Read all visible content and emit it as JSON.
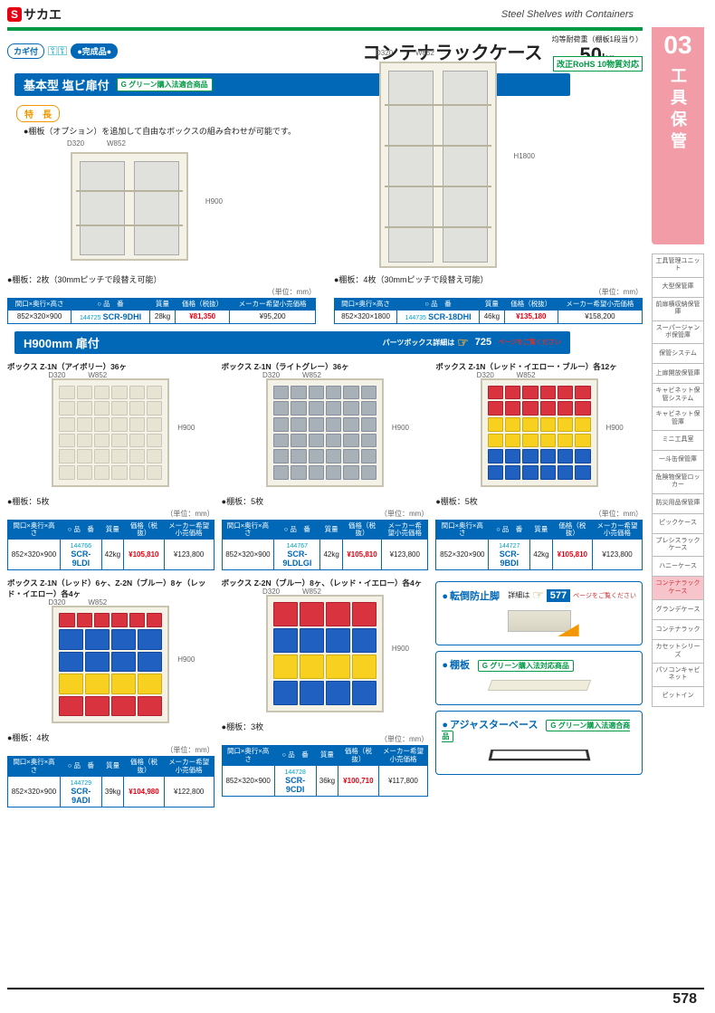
{
  "brand": {
    "logo_s": "S",
    "logo_jp": "サカエ",
    "steel_label": "Steel Shelves with Containers"
  },
  "side": {
    "num": "03",
    "title": "工具保管",
    "items": [
      "工具管理ユニット",
      "大型保管庫",
      "前扉横収納保管庫",
      "スーパージャンボ保管庫",
      "保管システム",
      "上扉開放保管庫",
      "キャビネット保管システム",
      "キャビネット保管庫",
      "ミニ工具室",
      "一斗缶保管庫",
      "危険物保管ロッカー",
      "防災用品保管庫",
      "ピックケース",
      "プレシスラックケース",
      "ハニーケース",
      "コンテナラックケース",
      "グランデケース",
      "コンテナラック",
      "カセットシリーズ",
      "パソコンキャビネット",
      "ピットイン"
    ],
    "active_index": 15
  },
  "header": {
    "pill1": "カギ付",
    "pill2": "●完成品●",
    "main_title": "コンテナラックケース",
    "load_label": "均等耐荷重（棚板1段当り）",
    "load_value": "50",
    "load_unit": "kg",
    "rohs": "改正RoHS 10物質対応"
  },
  "sect1": {
    "title": "基本型 塩ビ扉付",
    "g_label": "G グリーン購入法適合商品"
  },
  "feature": {
    "tag": "特　長",
    "text": "●棚板（オプション）を追加して自由なボックスの組み合わせが可能です。"
  },
  "dims": {
    "w852": "W852",
    "d320": "D320",
    "h900": "H900",
    "h1800": "H1800"
  },
  "tbl_headers": {
    "size": "間口×奥行×高さ",
    "code": "○ 品　番",
    "mass": "質量",
    "price": "価格（税抜）",
    "mprice": "メーカー希望小売価格"
  },
  "unit_label": "（単位：mm）",
  "shelves2": "●棚板：2枚（30mmピッチで段替え可能）",
  "shelves4": "●棚板：4枚（30mmピッチで段替え可能）",
  "shelves5": "●棚板：5枚",
  "shelves4b": "●棚板：4枚",
  "shelves3": "●棚板：3枚",
  "p1": {
    "size": "852×320×900",
    "codenum": "144725",
    "sku": "SCR-9DHI",
    "mass": "28kg",
    "price": "¥81,350",
    "mprice": "¥95,200"
  },
  "p2": {
    "size": "852×320×1800",
    "codenum": "144735",
    "sku": "SCR-18DHI",
    "mass": "46kg",
    "price": "¥135,180",
    "mprice": "¥158,200"
  },
  "sect2": {
    "title": "H900mm 扉付"
  },
  "ref725": {
    "label": "パーツボックス詳細は",
    "num": "725",
    "note": "ページをご覧ください"
  },
  "p3": {
    "box": "ボックス Z-1N（アイボリー）36ヶ",
    "size": "852×320×900",
    "codenum": "144766",
    "sku": "SCR-9LDI",
    "mass": "42kg",
    "price": "¥105,810",
    "mprice": "¥123,800"
  },
  "p4": {
    "box": "ボックス Z-1N（ライトグレー）36ヶ",
    "size": "852×320×900",
    "codenum": "144767",
    "sku": "SCR-9LDLGI",
    "mass": "42kg",
    "price": "¥105,810",
    "mprice": "¥123,800"
  },
  "p5": {
    "box": "ボックス Z-1N（レッド・イエロー・ブルー）各12ヶ",
    "size": "852×320×900",
    "codenum": "144727",
    "sku": "SCR-9BDI",
    "mass": "42kg",
    "price": "¥105,810",
    "mprice": "¥123,800"
  },
  "p6": {
    "box": "ボックス Z-1N（レッド）6ヶ、Z-2N（ブルー）8ヶ（レッド・イエロー）各4ヶ",
    "size": "852×320×900",
    "codenum": "144729",
    "sku": "SCR-9ADI",
    "mass": "39kg",
    "price": "¥104,980",
    "mprice": "¥122,800"
  },
  "p7": {
    "box": "ボックス Z-2N（ブルー）8ヶ、（レッド・イエロー）各4ヶ",
    "size": "852×320×900",
    "codenum": "144728",
    "sku": "SCR-9CDI",
    "mass": "36kg",
    "price": "¥100,710",
    "mprice": "¥117,800"
  },
  "callouts": {
    "c1": {
      "title": "転倒防止脚",
      "ref_num": "577",
      "ref_label": "詳細は",
      "ref_note": "ページをご覧ください"
    },
    "c2": {
      "title": "棚板",
      "badge": "G グリーン購入法対応商品"
    },
    "c3": {
      "title": "アジャスターベース",
      "badge": "G グリーン購入法適合商品"
    }
  },
  "page_num": "578"
}
